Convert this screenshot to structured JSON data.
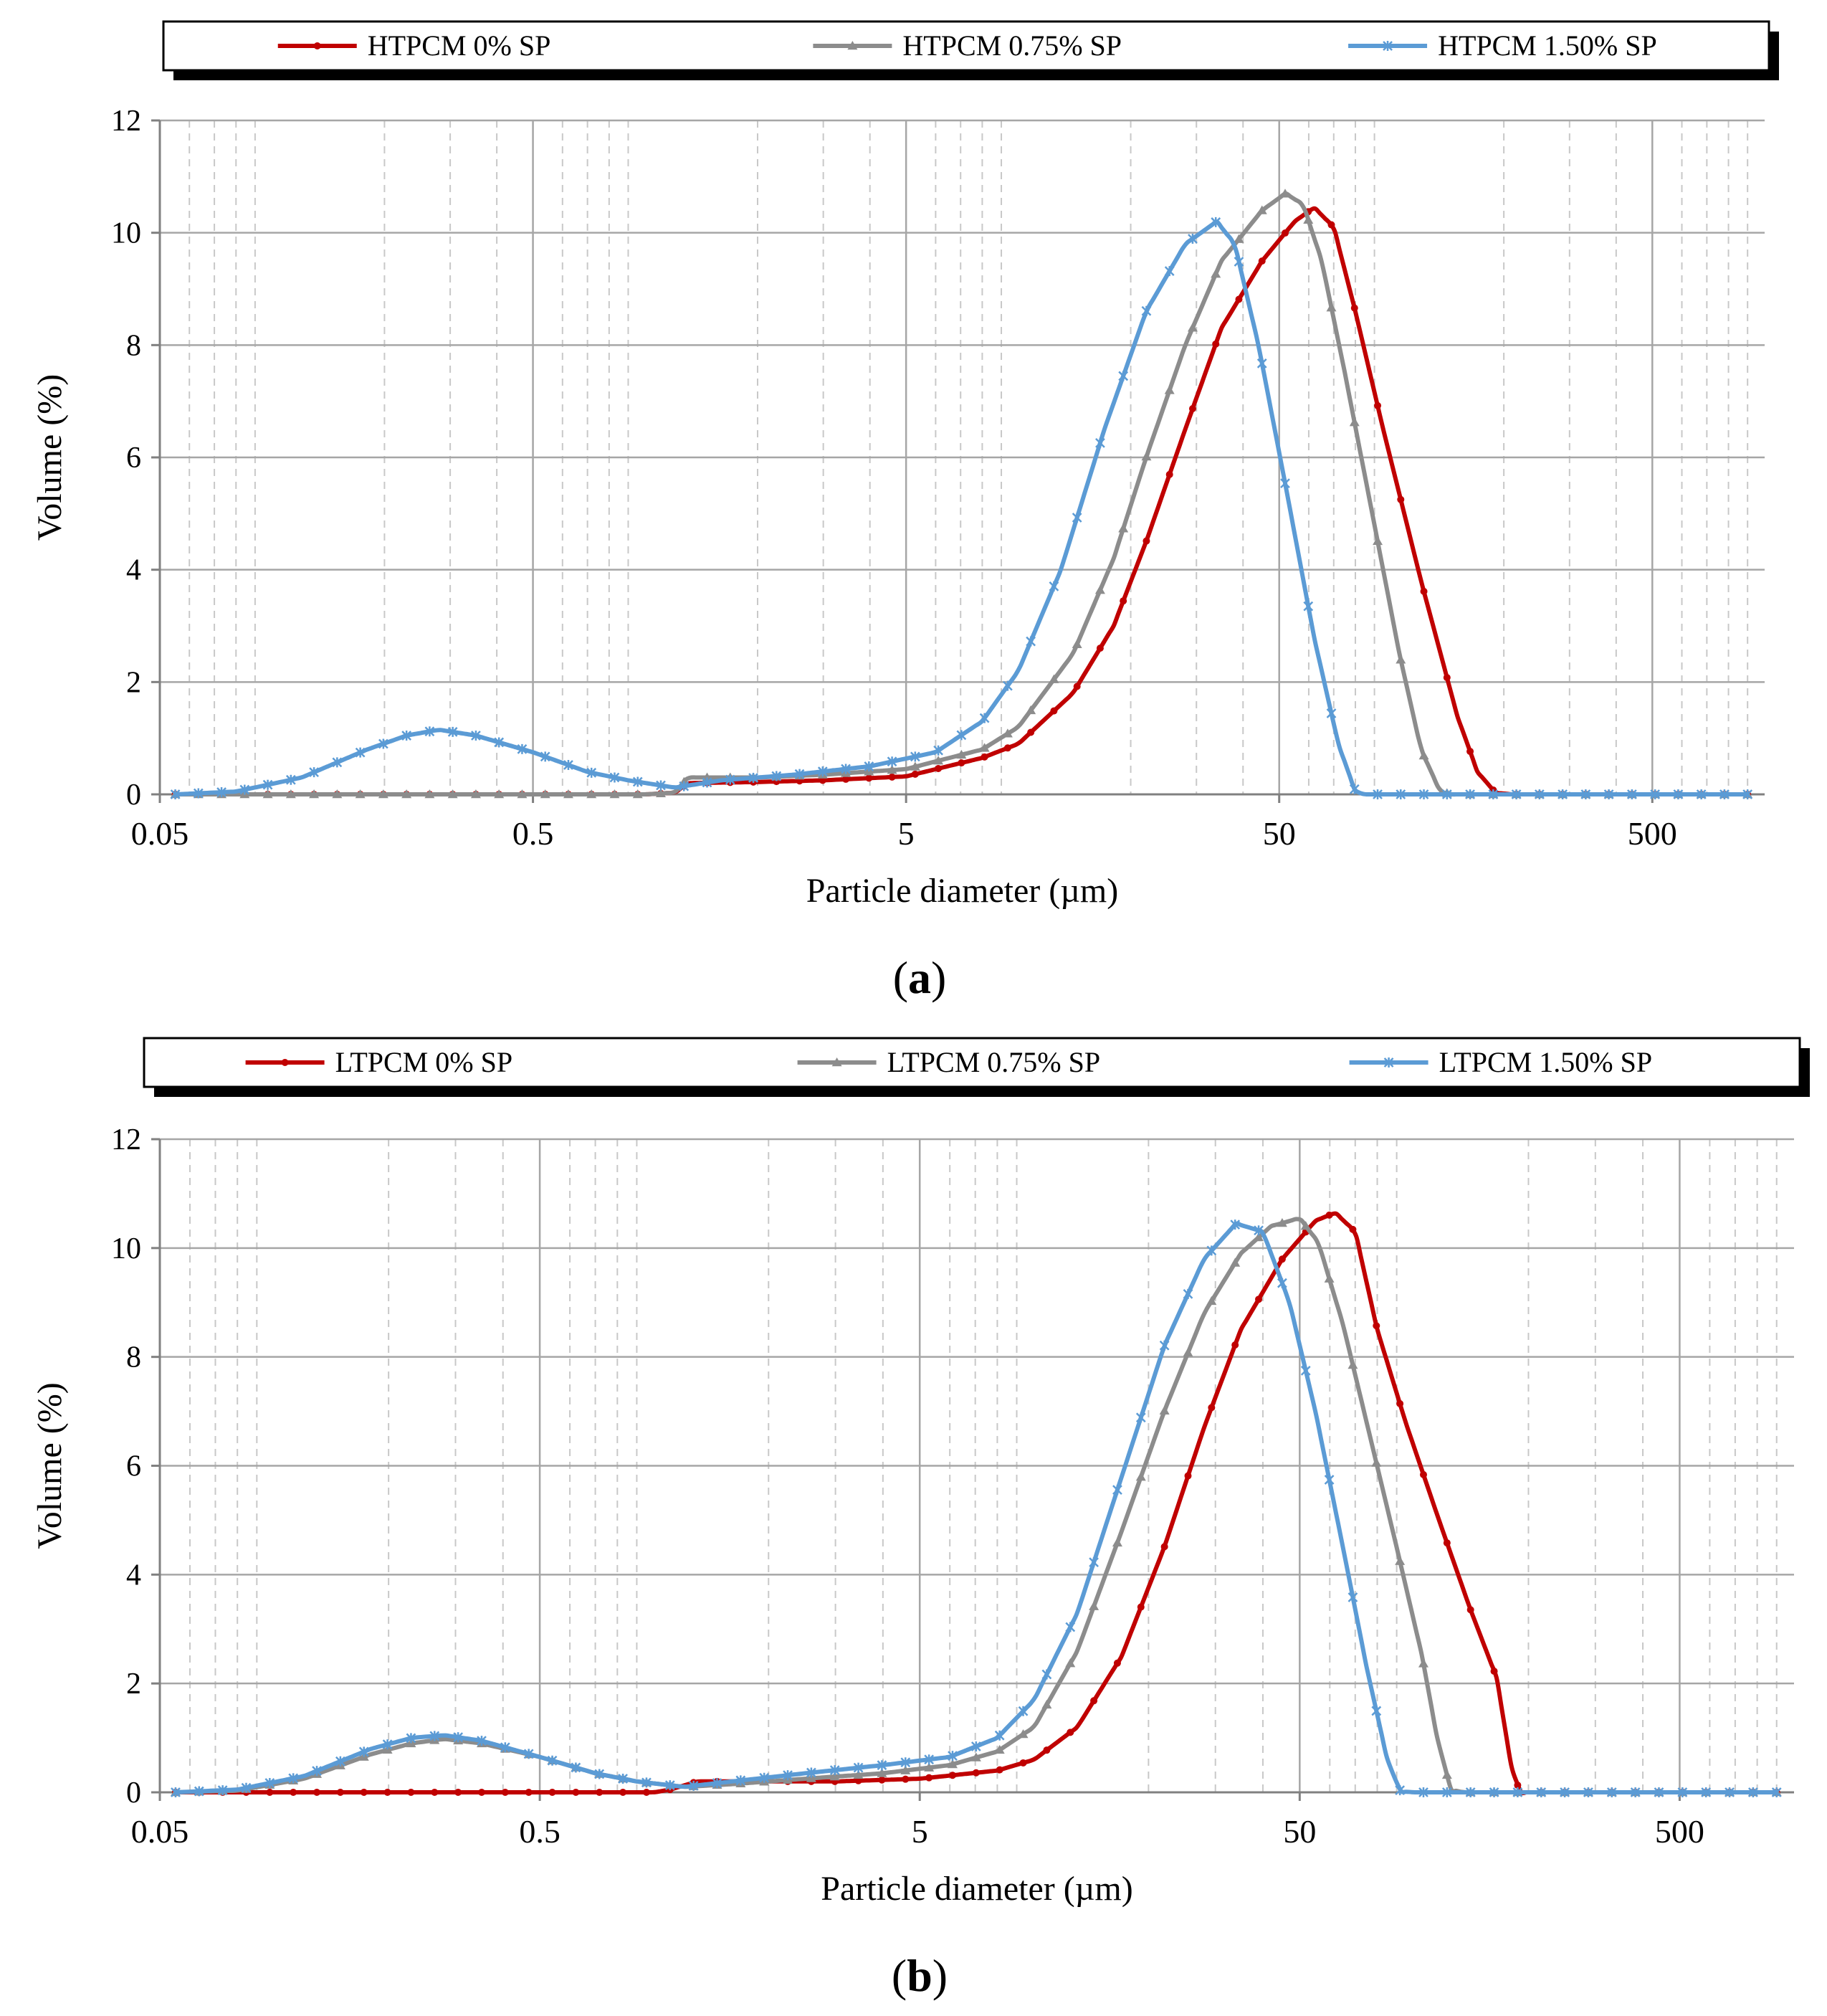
{
  "panel_captions": [
    "(a)",
    "(b)"
  ],
  "colors": {
    "red": "#c00000",
    "gray": "#8c8c8c",
    "blue": "#5b9bd5",
    "grid": "#a6a6a6",
    "minor_grid": "#c8c8c8"
  },
  "chart_data": [
    {
      "type": "line",
      "panel": "a",
      "caption_letter": "a",
      "xscale": "log",
      "xlabel": "Particle diameter (µm)",
      "ylabel": "Volume (%)",
      "xlim": [
        0.05,
        1000
      ],
      "ylim": [
        0,
        12
      ],
      "x_ticks": [
        0.05,
        0.5,
        5,
        50,
        500
      ],
      "x_tick_labels": [
        "0.05",
        "0.5",
        "5",
        "50",
        "500"
      ],
      "y_ticks": [
        0,
        2,
        4,
        6,
        8,
        10,
        12
      ],
      "y_tick_labels": [
        "0",
        "2",
        "4",
        "6",
        "8",
        "10",
        "12"
      ],
      "grid": true,
      "legend_position": "top",
      "series": [
        {
          "name": "HTPCM 0% SP",
          "color": "#c00000",
          "marker": "circle",
          "points": [
            [
              0.055,
              0
            ],
            [
              0.3,
              0
            ],
            [
              1.0,
              0
            ],
            [
              1.2,
              0.03
            ],
            [
              1.3,
              0.2
            ],
            [
              2,
              0.22
            ],
            [
              3,
              0.25
            ],
            [
              5,
              0.32
            ],
            [
              8,
              0.65
            ],
            [
              10,
              0.9
            ],
            [
              14,
              1.8
            ],
            [
              18,
              3.0
            ],
            [
              22,
              4.5
            ],
            [
              28,
              6.5
            ],
            [
              35,
              8.3
            ],
            [
              45,
              9.5
            ],
            [
              55,
              10.2
            ],
            [
              62,
              10.45
            ],
            [
              70,
              10.1
            ],
            [
              80,
              8.6
            ],
            [
              95,
              6.5
            ],
            [
              120,
              3.8
            ],
            [
              150,
              1.4
            ],
            [
              170,
              0.4
            ],
            [
              190,
              0.03
            ],
            [
              210,
              0
            ],
            [
              900,
              0
            ]
          ]
        },
        {
          "name": "HTPCM  0.75% SP",
          "color": "#8c8c8c",
          "marker": "triangle",
          "points": [
            [
              0.055,
              0
            ],
            [
              0.3,
              0
            ],
            [
              1.0,
              0
            ],
            [
              1.2,
              0.03
            ],
            [
              1.3,
              0.3
            ],
            [
              2,
              0.3
            ],
            [
              3,
              0.35
            ],
            [
              5,
              0.45
            ],
            [
              8,
              0.8
            ],
            [
              10,
              1.2
            ],
            [
              14,
              2.5
            ],
            [
              18,
              4.2
            ],
            [
              22,
              6.0
            ],
            [
              28,
              8.0
            ],
            [
              35,
              9.5
            ],
            [
              45,
              10.4
            ],
            [
              52,
              10.7
            ],
            [
              58,
              10.5
            ],
            [
              65,
              9.5
            ],
            [
              75,
              7.5
            ],
            [
              90,
              4.8
            ],
            [
              105,
              2.5
            ],
            [
              120,
              0.8
            ],
            [
              135,
              0.05
            ],
            [
              145,
              0
            ],
            [
              900,
              0
            ]
          ]
        },
        {
          "name": "HTPCM  1.50% SP",
          "color": "#5b9bd5",
          "marker": "x",
          "points": [
            [
              0.055,
              0
            ],
            [
              0.08,
              0.05
            ],
            [
              0.12,
              0.3
            ],
            [
              0.18,
              0.8
            ],
            [
              0.23,
              1.05
            ],
            [
              0.28,
              1.15
            ],
            [
              0.35,
              1.05
            ],
            [
              0.5,
              0.75
            ],
            [
              0.7,
              0.4
            ],
            [
              0.9,
              0.25
            ],
            [
              1.2,
              0.12
            ],
            [
              1.6,
              0.25
            ],
            [
              2.5,
              0.35
            ],
            [
              4,
              0.5
            ],
            [
              6,
              0.75
            ],
            [
              8,
              1.3
            ],
            [
              10,
              2.2
            ],
            [
              13,
              4.0
            ],
            [
              17,
              6.5
            ],
            [
              22,
              8.6
            ],
            [
              28,
              9.8
            ],
            [
              34,
              10.2
            ],
            [
              38,
              9.8
            ],
            [
              44,
              8.0
            ],
            [
              52,
              5.5
            ],
            [
              62,
              2.8
            ],
            [
              72,
              0.9
            ],
            [
              80,
              0.05
            ],
            [
              85,
              0
            ],
            [
              900,
              0
            ]
          ]
        }
      ]
    },
    {
      "type": "line",
      "panel": "b",
      "caption_letter": "b",
      "xscale": "log",
      "xlabel": "Particle diameter (µm)",
      "ylabel": "Volume (%)",
      "xlim": [
        0.05,
        1000
      ],
      "ylim": [
        0,
        12
      ],
      "x_ticks": [
        0.05,
        0.5,
        5,
        50,
        500
      ],
      "x_tick_labels": [
        "0.05",
        "0.5",
        "5",
        "50",
        "500"
      ],
      "y_ticks": [
        0,
        2,
        4,
        6,
        8,
        10,
        12
      ],
      "y_tick_labels": [
        "0",
        "2",
        "4",
        "6",
        "8",
        "10",
        "12"
      ],
      "grid": true,
      "legend_position": "top",
      "series": [
        {
          "name": "LTPCM 0% SP",
          "color": "#c00000",
          "marker": "circle",
          "points": [
            [
              0.055,
              0
            ],
            [
              0.3,
              0
            ],
            [
              1.0,
              0
            ],
            [
              1.1,
              0.05
            ],
            [
              1.3,
              0.2
            ],
            [
              2,
              0.2
            ],
            [
              3,
              0.2
            ],
            [
              5,
              0.25
            ],
            [
              8,
              0.4
            ],
            [
              10,
              0.6
            ],
            [
              13,
              1.2
            ],
            [
              17,
              2.5
            ],
            [
              22,
              4.5
            ],
            [
              28,
              6.7
            ],
            [
              35,
              8.5
            ],
            [
              45,
              9.8
            ],
            [
              55,
              10.5
            ],
            [
              62,
              10.65
            ],
            [
              70,
              10.3
            ],
            [
              80,
              8.5
            ],
            [
              95,
              6.8
            ],
            [
              115,
              5.1
            ],
            [
              140,
              3.4
            ],
            [
              165,
              2.1
            ],
            [
              180,
              0.5
            ],
            [
              190,
              0
            ],
            [
              900,
              0
            ]
          ]
        },
        {
          "name": "LTPCM  0.75% SP",
          "color": "#8c8c8c",
          "marker": "triangle",
          "points": [
            [
              0.055,
              0
            ],
            [
              0.08,
              0.03
            ],
            [
              0.12,
              0.25
            ],
            [
              0.18,
              0.7
            ],
            [
              0.23,
              0.9
            ],
            [
              0.28,
              0.98
            ],
            [
              0.35,
              0.9
            ],
            [
              0.5,
              0.65
            ],
            [
              0.7,
              0.35
            ],
            [
              0.9,
              0.2
            ],
            [
              1.2,
              0.1
            ],
            [
              1.6,
              0.15
            ],
            [
              2.5,
              0.25
            ],
            [
              4,
              0.35
            ],
            [
              6,
              0.5
            ],
            [
              8,
              0.75
            ],
            [
              10,
              1.2
            ],
            [
              13,
              2.6
            ],
            [
              17,
              4.8
            ],
            [
              22,
              7.0
            ],
            [
              28,
              8.8
            ],
            [
              35,
              9.9
            ],
            [
              42,
              10.4
            ],
            [
              50,
              10.55
            ],
            [
              56,
              10.1
            ],
            [
              65,
              8.6
            ],
            [
              75,
              6.8
            ],
            [
              90,
              4.5
            ],
            [
              105,
              2.5
            ],
            [
              115,
              1.0
            ],
            [
              125,
              0.05
            ],
            [
              135,
              0
            ],
            [
              900,
              0
            ]
          ]
        },
        {
          "name": "LTPCM  1.50% SP",
          "color": "#5b9bd5",
          "marker": "x",
          "points": [
            [
              0.055,
              0
            ],
            [
              0.08,
              0.05
            ],
            [
              0.12,
              0.3
            ],
            [
              0.18,
              0.8
            ],
            [
              0.23,
              1.0
            ],
            [
              0.28,
              1.05
            ],
            [
              0.35,
              0.95
            ],
            [
              0.5,
              0.65
            ],
            [
              0.7,
              0.35
            ],
            [
              0.9,
              0.2
            ],
            [
              1.2,
              0.1
            ],
            [
              1.6,
              0.2
            ],
            [
              2.5,
              0.35
            ],
            [
              4,
              0.5
            ],
            [
              6,
              0.65
            ],
            [
              8,
              1.0
            ],
            [
              10,
              1.7
            ],
            [
              13,
              3.3
            ],
            [
              17,
              5.8
            ],
            [
              22,
              8.2
            ],
            [
              28,
              9.8
            ],
            [
              34,
              10.45
            ],
            [
              40,
              10.3
            ],
            [
              47,
              9.0
            ],
            [
              55,
              7.0
            ],
            [
              65,
              4.5
            ],
            [
              75,
              2.3
            ],
            [
              85,
              0.6
            ],
            [
              92,
              0.02
            ],
            [
              100,
              0
            ],
            [
              900,
              0
            ]
          ]
        }
      ]
    }
  ]
}
